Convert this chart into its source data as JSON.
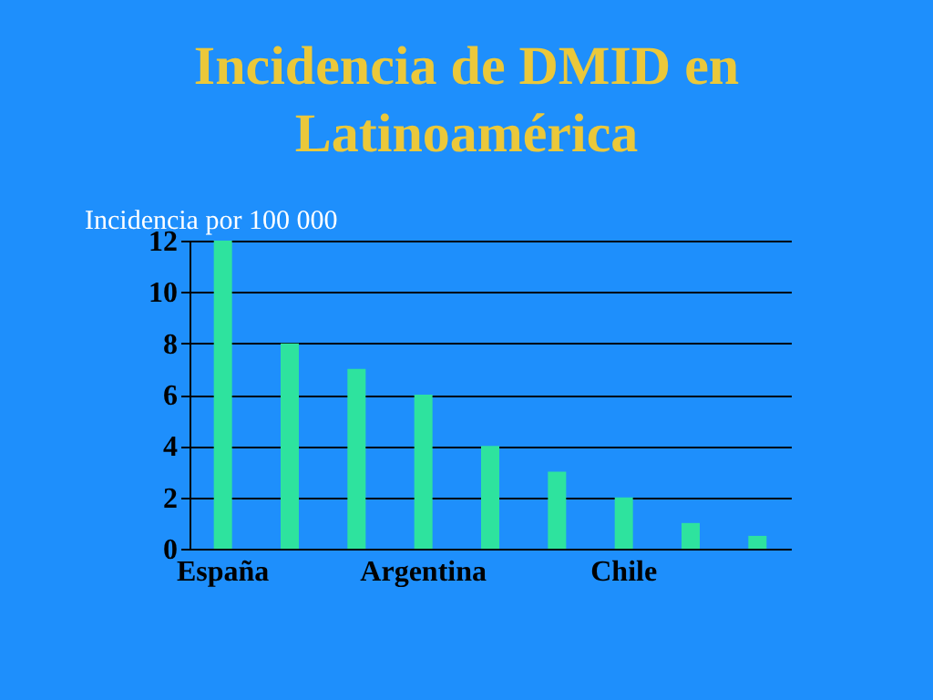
{
  "chart_data": {
    "type": "bar",
    "title": "Incidencia de DMID en Latinoamérica",
    "ylabel": "Incidencia por  100 000",
    "categories": [
      "España",
      null,
      null,
      "Argentina",
      null,
      null,
      "Chile",
      null,
      null
    ],
    "values": [
      12,
      8,
      7,
      6,
      4,
      3,
      2,
      1,
      0.5
    ],
    "color": "#2ee39e",
    "ylim": [
      0,
      12
    ],
    "yticks": [
      0,
      2,
      4,
      6,
      8,
      10,
      12
    ],
    "grid": "y"
  }
}
